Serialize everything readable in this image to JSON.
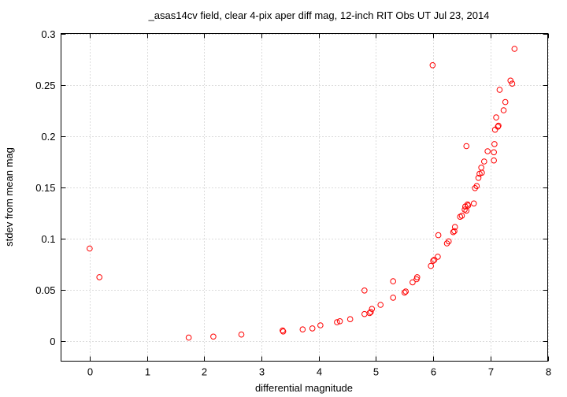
{
  "chart_data": {
    "type": "scatter",
    "title": "_asas14cv field, clear 4-pix aper diff mag,  12-inch RIT Obs UT Jul 23, 2014",
    "xlabel": "differential magnitude",
    "ylabel": "stdev from mean mag",
    "xlim": [
      -0.5,
      8
    ],
    "ylim": [
      -0.02,
      0.3
    ],
    "xticks": [
      0,
      1,
      2,
      3,
      4,
      5,
      6,
      7,
      8
    ],
    "xtick_labels": [
      "0",
      "1",
      "2",
      "3",
      "4",
      "5",
      "6",
      "7",
      "8"
    ],
    "yticks": [
      0,
      0.05,
      0.1,
      0.15,
      0.2,
      0.25,
      0.3
    ],
    "ytick_labels": [
      "0",
      "0.05",
      "0.1",
      "0.15",
      "0.2",
      "0.25",
      "0.3"
    ],
    "grid": true,
    "marker": "open-circle",
    "marker_color": "#ff0000",
    "series": [
      {
        "points": [
          [
            0.0,
            0.09
          ],
          [
            0.17,
            0.062
          ],
          [
            1.73,
            0.003
          ],
          [
            2.16,
            0.004
          ],
          [
            2.65,
            0.006
          ],
          [
            3.37,
            0.01
          ],
          [
            3.38,
            0.009
          ],
          [
            3.72,
            0.011
          ],
          [
            3.89,
            0.012
          ],
          [
            4.03,
            0.015
          ],
          [
            4.32,
            0.018
          ],
          [
            4.37,
            0.019
          ],
          [
            4.55,
            0.021
          ],
          [
            4.8,
            0.026
          ],
          [
            4.8,
            0.049
          ],
          [
            4.89,
            0.027
          ],
          [
            4.91,
            0.028
          ],
          [
            4.93,
            0.031
          ],
          [
            5.08,
            0.035
          ],
          [
            5.3,
            0.042
          ],
          [
            5.3,
            0.058
          ],
          [
            5.5,
            0.047
          ],
          [
            5.52,
            0.048
          ],
          [
            5.64,
            0.057
          ],
          [
            5.71,
            0.06
          ],
          [
            5.72,
            0.062
          ],
          [
            5.96,
            0.073
          ],
          [
            6.0,
            0.078
          ],
          [
            6.02,
            0.079
          ],
          [
            6.08,
            0.082
          ],
          [
            6.09,
            0.103
          ],
          [
            5.99,
            0.269
          ],
          [
            6.24,
            0.095
          ],
          [
            6.27,
            0.097
          ],
          [
            6.35,
            0.106
          ],
          [
            6.37,
            0.107
          ],
          [
            6.38,
            0.111
          ],
          [
            6.47,
            0.121
          ],
          [
            6.5,
            0.122
          ],
          [
            6.55,
            0.128
          ],
          [
            6.56,
            0.131
          ],
          [
            6.58,
            0.127
          ],
          [
            6.6,
            0.133
          ],
          [
            6.61,
            0.132
          ],
          [
            6.58,
            0.19
          ],
          [
            6.71,
            0.134
          ],
          [
            6.73,
            0.149
          ],
          [
            6.76,
            0.151
          ],
          [
            6.79,
            0.159
          ],
          [
            6.81,
            0.163
          ],
          [
            6.84,
            0.169
          ],
          [
            6.85,
            0.164
          ],
          [
            6.89,
            0.175
          ],
          [
            6.95,
            0.185
          ],
          [
            7.06,
            0.184
          ],
          [
            7.07,
            0.192
          ],
          [
            7.06,
            0.176
          ],
          [
            7.08,
            0.206
          ],
          [
            7.1,
            0.218
          ],
          [
            7.13,
            0.209
          ],
          [
            7.14,
            0.21
          ],
          [
            7.16,
            0.245
          ],
          [
            7.23,
            0.225
          ],
          [
            7.26,
            0.233
          ],
          [
            7.35,
            0.254
          ],
          [
            7.38,
            0.251
          ],
          [
            7.42,
            0.285
          ]
        ]
      }
    ]
  }
}
